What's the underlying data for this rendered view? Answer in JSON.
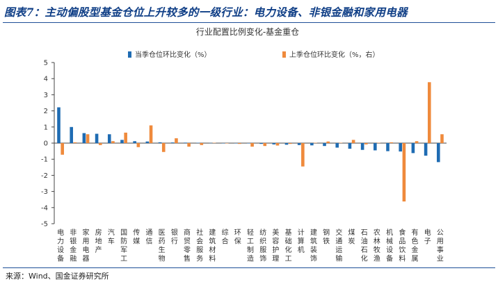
{
  "figure": {
    "title": "图表7：主动偏股型基金仓位上升较多的一级行业：电力设备、非银金融和家用电器",
    "source": "来源：Wind、国金证券研究所"
  },
  "colors": {
    "title": "#0f3e86",
    "series_current": "#1f6cb3",
    "series_previous": "#ef8a3c",
    "axis": "#444444"
  },
  "chart_data": {
    "type": "bar",
    "title": "行业配置比例变化-基金重仓",
    "ylim": [
      -5,
      5
    ],
    "yticks": [
      -5,
      -4,
      -3,
      -2,
      -1,
      0,
      1,
      2,
      3,
      4,
      5
    ],
    "grid": false,
    "legend_position": "top",
    "categories": [
      "电力设备",
      "非银金融",
      "家用电器",
      "房地产",
      "汽车",
      "国防军工",
      "传媒",
      "通信",
      "医药生物",
      "银行",
      "商贸零售",
      "社会服务",
      "建筑材料",
      "综合",
      "环保",
      "轻工制造",
      "纺织服饰",
      "美容护理",
      "基础化工",
      "计算机",
      "建筑装饰",
      "钢铁",
      "交通运输",
      "煤炭",
      "石油石化",
      "农林牧渔",
      "机械设备",
      "食品饮料",
      "有色金属",
      "电子",
      "公用事业"
    ],
    "series": [
      {
        "name": "当季仓位环比变化（%）",
        "color": "#1f6cb3",
        "values": [
          2.22,
          1.0,
          0.62,
          0.58,
          0.55,
          0.2,
          0.12,
          0.1,
          0.05,
          0.04,
          0.03,
          0.02,
          0.01,
          0.0,
          0.0,
          -0.02,
          -0.05,
          -0.08,
          -0.1,
          -0.12,
          -0.14,
          -0.18,
          -0.28,
          -0.35,
          -0.42,
          -0.45,
          -0.5,
          -0.52,
          -0.62,
          -0.78,
          -1.18
        ]
      },
      {
        "name": "上季仓位环比变化（%，右）",
        "color": "#ef8a3c",
        "values": [
          -0.72,
          0.05,
          0.55,
          -0.12,
          0.12,
          0.65,
          -0.25,
          1.1,
          -0.55,
          0.3,
          -0.22,
          -0.12,
          0.02,
          -0.02,
          -0.05,
          -0.22,
          -0.18,
          -0.15,
          -0.05,
          -1.45,
          0.02,
          0.1,
          0.02,
          0.2,
          -0.08,
          0.02,
          0.05,
          -3.62,
          0.12,
          3.78,
          0.55
        ]
      }
    ]
  }
}
